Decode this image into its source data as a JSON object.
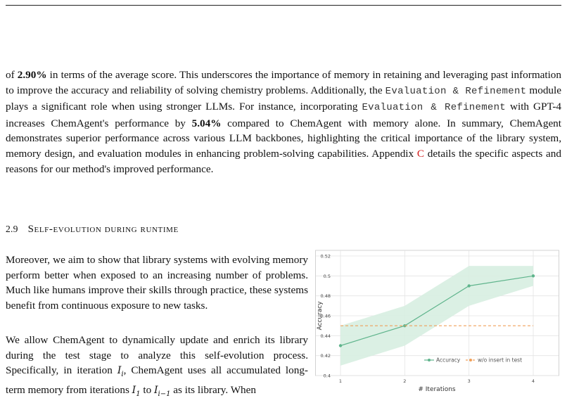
{
  "paragraph1": {
    "t1": "of ",
    "b1": "2.90%",
    "t2": " in terms of the average score. This underscores the importance of memory in retaining and leveraging past information to improve the accuracy and reliability of solving chemistry problems. Additionally, the ",
    "code1": "Evaluation & Refinement",
    "t3": " module plays a significant role when using stronger LLMs. For instance, incorporating ",
    "code2": "Evaluation & Refinement",
    "t4": " with GPT-4 increases ChemAgent's performance by ",
    "b2": "5.04%",
    "t5": " compared to ChemAgent with memory alone. In summary, ChemAgent demonstrates superior performance across various LLM backbones, highlighting the critical importance of the library system, memory design, and evaluation modules in enhancing problem-solving capabilities. Appendix ",
    "ref": "C",
    "t6": " details the specific aspects and reasons for our method's improved performance."
  },
  "section": {
    "number": "2.9",
    "title": "Self-evolution during runtime"
  },
  "paragraph2": "Moreover, we aim to show that library systems with evolving memory perform better when exposed to an increasing number of problems. Much like humans improve their skills through practice, these systems benefit from continuous exposure to new tasks.",
  "paragraph3": {
    "t1": "We allow ChemAgent to dynamically update and enrich its library during the test stage to analyze this self-evolution process. Specifically, in iteration ",
    "t2": ", ChemAgent uses all accumulated long-term memory from iterations ",
    "t3": " to ",
    "t4": " as its library. When",
    "m_sym": "I",
    "m_i": "i",
    "m_1": "1",
    "m_im1": "i−1"
  },
  "chart_data": {
    "type": "line",
    "xlabel": "# Iterations",
    "ylabel": "Accuracy",
    "x": [
      1,
      2,
      3,
      4
    ],
    "xticks": [
      "1",
      "2",
      "3",
      "4"
    ],
    "ylim": [
      0.4,
      0.52
    ],
    "yticks": [
      "0.4",
      "0.42",
      "0.44",
      "0.46",
      "0.48",
      "0.5",
      "0.52"
    ],
    "grid": true,
    "legend_position": "bottom-right",
    "series": [
      {
        "name": "Accuracy",
        "values": [
          0.43,
          0.45,
          0.49,
          0.5
        ],
        "band_lower": [
          0.41,
          0.43,
          0.47,
          0.49
        ],
        "band_upper": [
          0.45,
          0.47,
          0.51,
          0.51
        ],
        "color": "#5fb48c",
        "band_color": "#d7eee1"
      },
      {
        "name": "w/o insert in test",
        "values": [
          0.45,
          0.45,
          0.45,
          0.45
        ],
        "color": "#f0a05a",
        "dashed": true
      }
    ]
  }
}
